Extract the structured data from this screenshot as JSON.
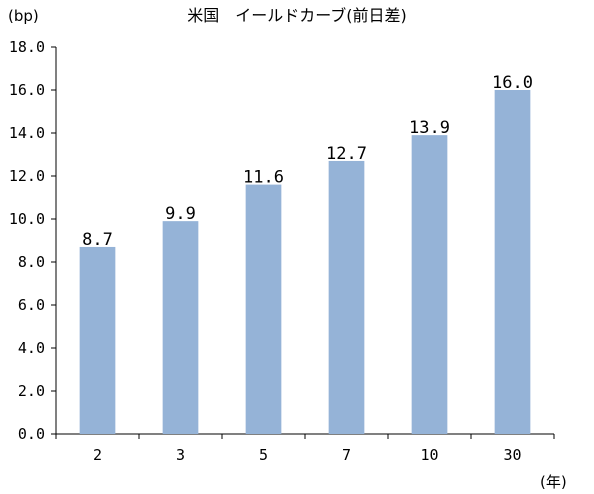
{
  "chart_data": {
    "type": "bar",
    "title": "米国　イールドカーブ(前日差)",
    "ylabel": "(bp)",
    "xlabel": "(年)",
    "categories": [
      "2",
      "3",
      "5",
      "7",
      "10",
      "30"
    ],
    "values": [
      8.7,
      9.9,
      11.6,
      12.7,
      13.9,
      16.0
    ],
    "data_labels": [
      "8.7",
      "9.9",
      "11.6",
      "12.7",
      "13.9",
      "16.0"
    ],
    "ylim": [
      0,
      18
    ],
    "y_ticks": [
      "0.0",
      "2.0",
      "4.0",
      "6.0",
      "8.0",
      "10.0",
      "12.0",
      "14.0",
      "16.0",
      "18.0"
    ],
    "grid": false,
    "legend": "none",
    "bar_color": "#95B3D7"
  }
}
